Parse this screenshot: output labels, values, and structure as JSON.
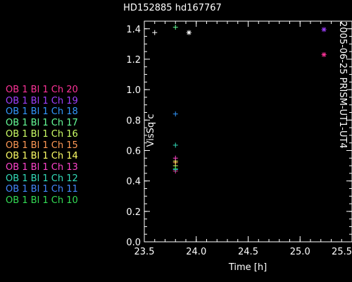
{
  "chart_data": {
    "type": "scatter",
    "title": "HD152885 hd167767",
    "side_label": "2005-06-25 PRISM-UT1-UT4",
    "xlabel": "Time [h]",
    "ylabel": "VisSq c",
    "xlim": [
      23.5,
      25.5
    ],
    "ylim": [
      0.0,
      1.45
    ],
    "x_ticks": [
      "23.5",
      "24.0",
      "24.5",
      "25.0",
      "25.5"
    ],
    "y_ticks": [
      "0.0",
      "0.2",
      "0.4",
      "0.6",
      "0.8",
      "1.0",
      "1.2",
      "1.4"
    ],
    "grid": false,
    "legend_position": "left",
    "series": [
      {
        "name": "OB 1 Bl 1 Ch 20",
        "color": "#ff3399",
        "points": [
          {
            "x": 23.8,
            "y": 0.465,
            "marker": "plus"
          },
          {
            "x": 25.23,
            "y": 1.23,
            "marker": "asterisk"
          }
        ]
      },
      {
        "name": "OB 1 Bl 1 Ch 19",
        "color": "#a040ff",
        "points": [
          {
            "x": 25.23,
            "y": 1.395,
            "marker": "asterisk"
          }
        ]
      },
      {
        "name": "OB 1 Bl 1 Ch 18",
        "color": "#3399ff",
        "points": [
          {
            "x": 23.8,
            "y": 0.84,
            "marker": "plus"
          }
        ]
      },
      {
        "name": "OB 1 Bl 1 Ch 17",
        "color": "#66ff99",
        "points": [
          {
            "x": 23.8,
            "y": 1.41,
            "marker": "plus"
          }
        ]
      },
      {
        "name": "OB 1 Bl 1 Ch 16",
        "color": "#ccff66",
        "points": [
          {
            "x": 23.8,
            "y": 0.5,
            "marker": "plus"
          }
        ]
      },
      {
        "name": "OB 1 Bl 1 Ch 15",
        "color": "#ff9955",
        "points": [
          {
            "x": 23.8,
            "y": 0.52,
            "marker": "plus"
          }
        ]
      },
      {
        "name": "OB 1 Bl 1 Ch 14",
        "color": "#ffff66",
        "points": [
          {
            "x": 23.8,
            "y": 0.53,
            "marker": "plus"
          }
        ]
      },
      {
        "name": "OB 1 Bl 1 Ch 13",
        "color": "#ff44cc",
        "points": [
          {
            "x": 23.8,
            "y": 0.55,
            "marker": "plus"
          }
        ]
      },
      {
        "name": "OB 1 Bl 1 Ch 12",
        "color": "#33ddbb",
        "points": [
          {
            "x": 23.8,
            "y": 0.635,
            "marker": "plus"
          }
        ]
      },
      {
        "name": "OB 1 Bl 1 Ch 11",
        "color": "#4488ff",
        "points": [
          {
            "x": 23.8,
            "y": 0.475,
            "marker": "plus"
          }
        ]
      },
      {
        "name": "OB 1 Bl 1 Ch 10",
        "color": "#33dd55",
        "points": [
          {
            "x": 23.8,
            "y": 0.48,
            "marker": "plus"
          }
        ]
      },
      {
        "name": "",
        "color": "#ffffff",
        "points": [
          {
            "x": 23.6,
            "y": 1.375,
            "marker": "plus"
          },
          {
            "x": 23.93,
            "y": 1.375,
            "marker": "asterisk"
          }
        ]
      }
    ]
  }
}
